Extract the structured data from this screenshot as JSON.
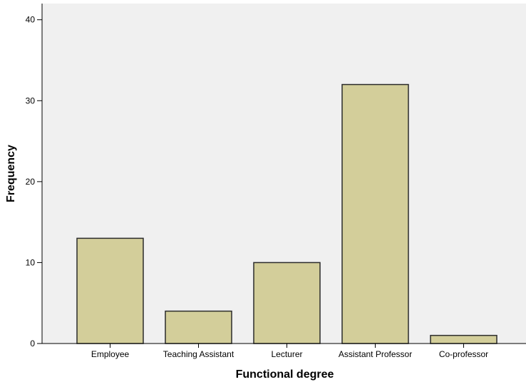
{
  "chart_data": {
    "type": "bar",
    "title": "",
    "xlabel": "Functional degree",
    "ylabel": "Frequency",
    "categories": [
      "Employee",
      "Teaching Assistant",
      "Lecturer",
      "Assistant Professor",
      "Co-professor"
    ],
    "values": [
      13,
      4,
      10,
      32,
      1
    ],
    "ylim": [
      0,
      42
    ],
    "yticks": [
      0,
      10,
      20,
      30,
      40
    ],
    "grid": false,
    "legend": "none",
    "colors": {
      "plot_background": "#f0f0f0",
      "bar_fill": "#d3ce9a",
      "bar_stroke": "#2b2b2b",
      "axis": "#000000"
    }
  }
}
